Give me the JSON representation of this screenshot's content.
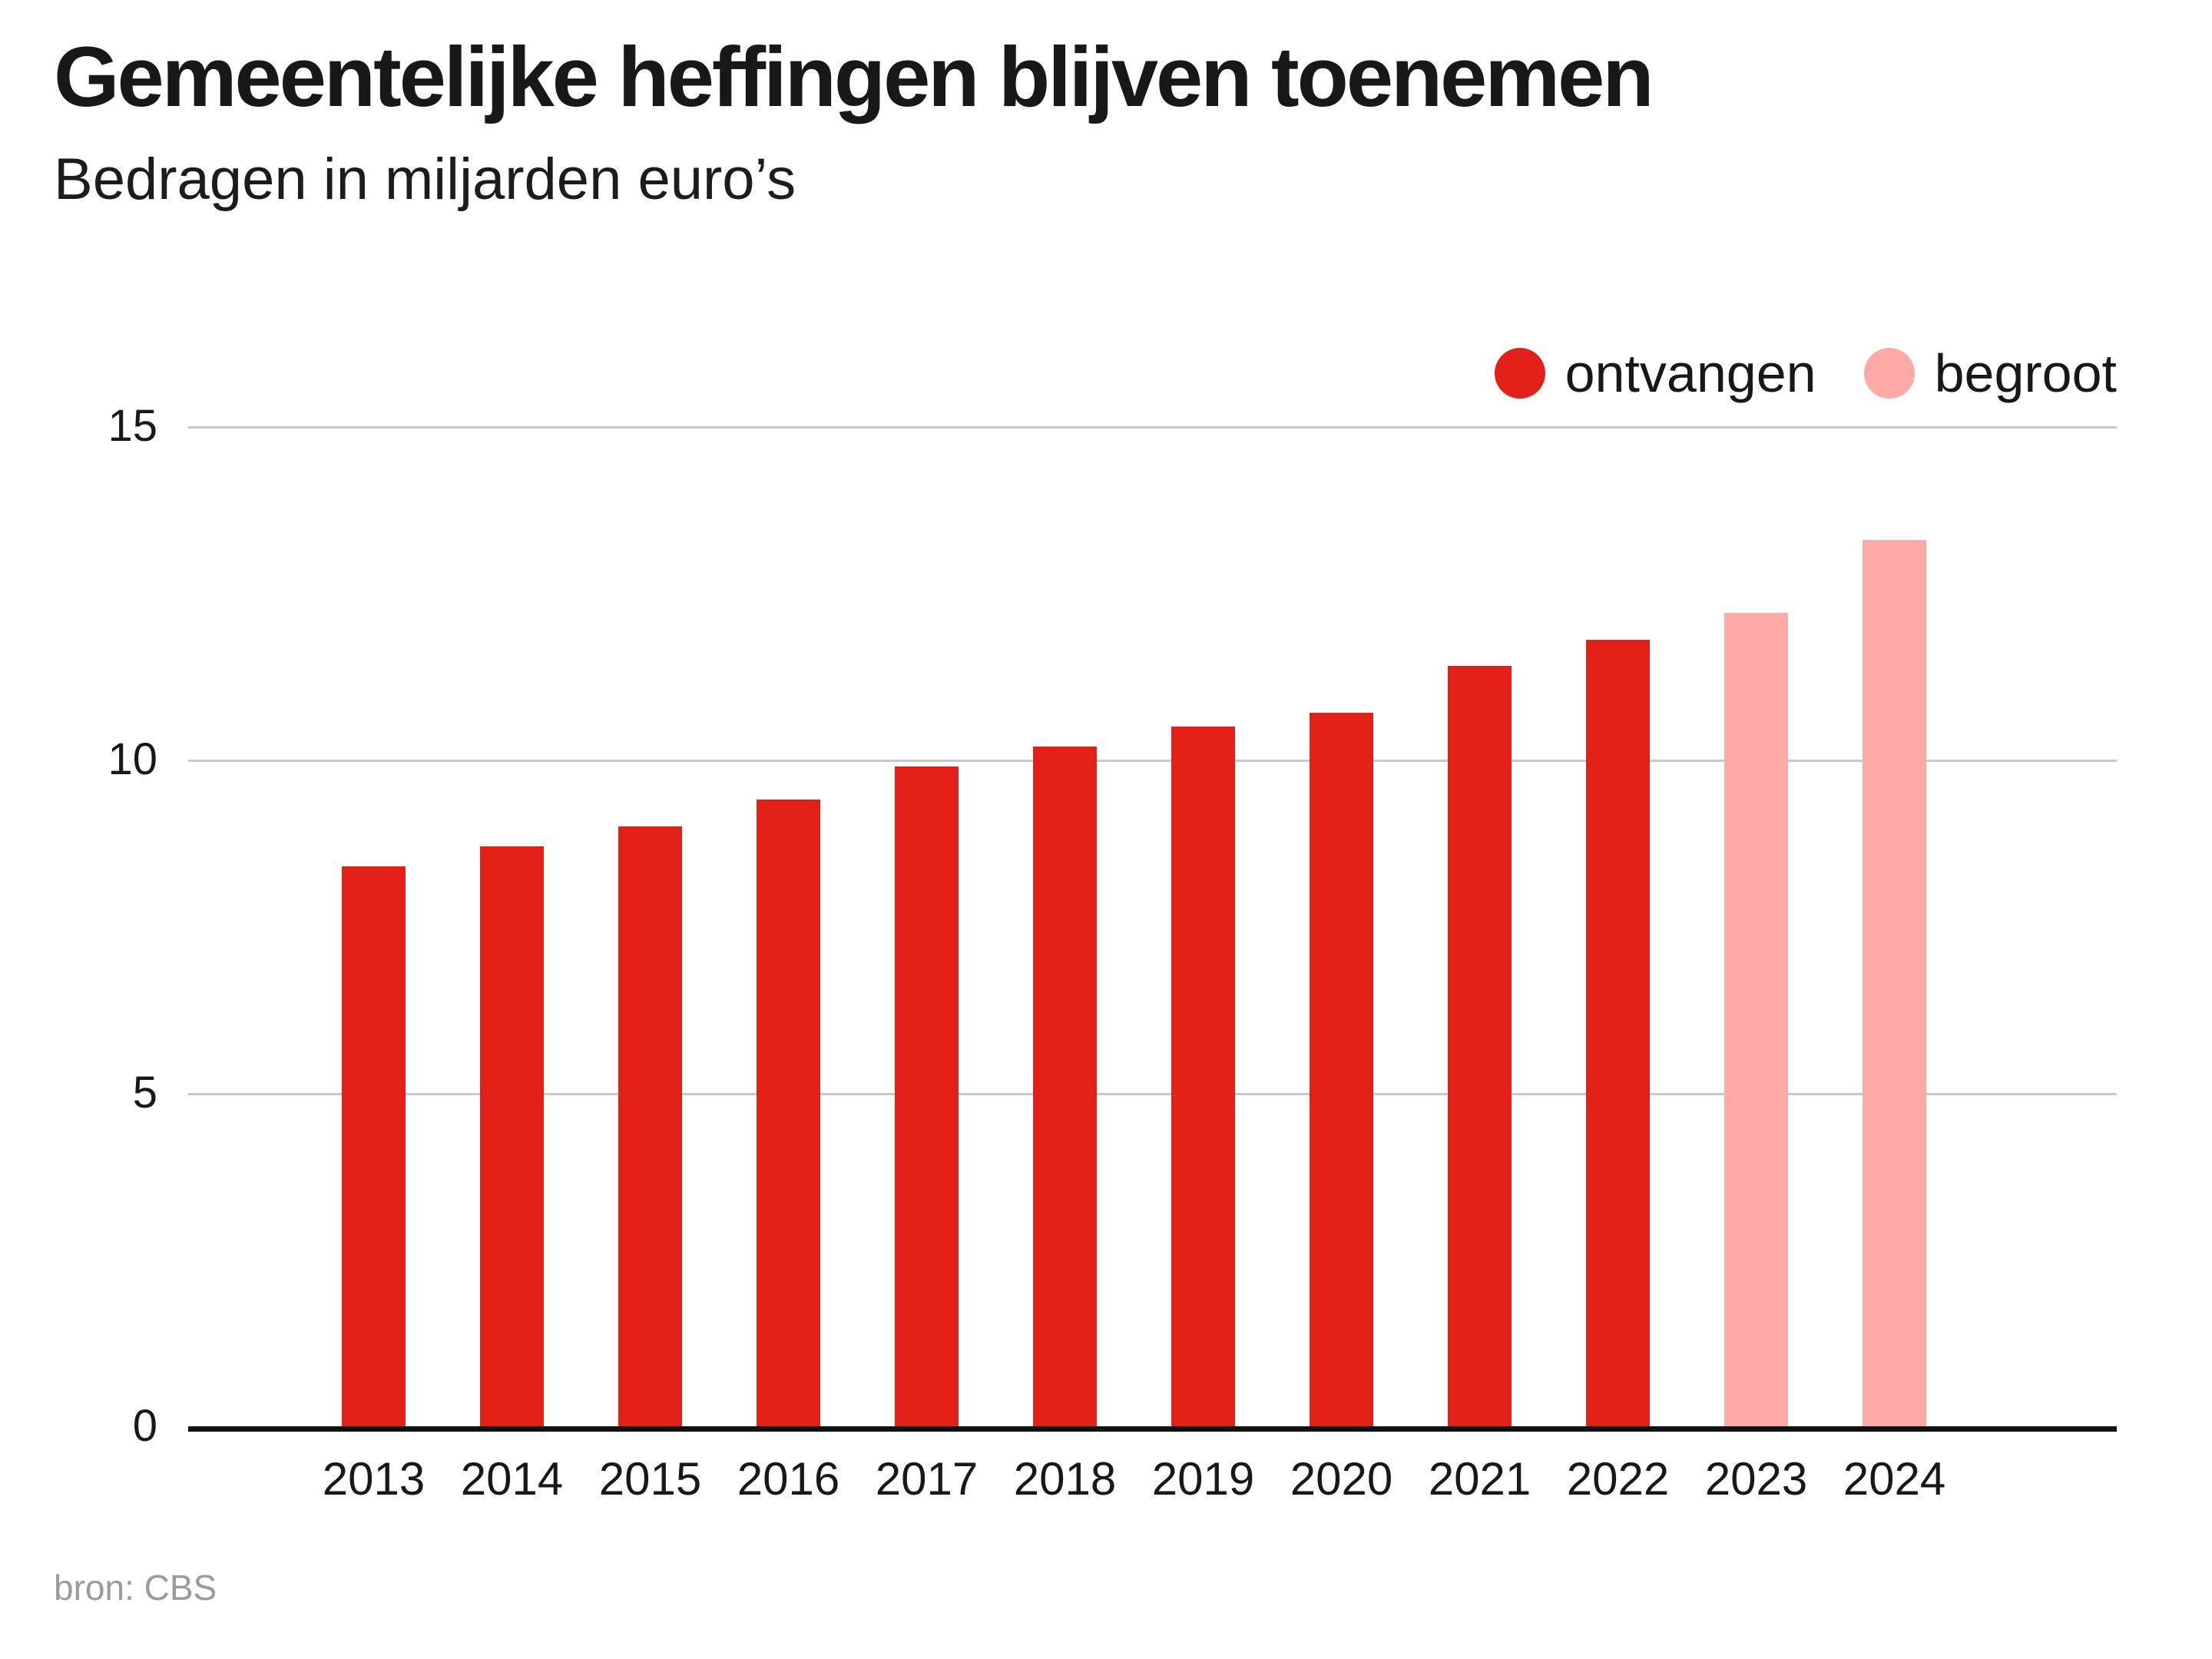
{
  "header": {
    "title": "Gemeentelijke heffingen blijven toenemen",
    "subtitle": "Bedragen in miljarden euro’s"
  },
  "legend": [
    {
      "label": "ontvangen",
      "color": "#e32017"
    },
    {
      "label": "begroot",
      "color": "#fda9a6"
    }
  ],
  "footer": {
    "source": "bron: CBS"
  },
  "colors": {
    "received": "#e32017",
    "budgeted": "#fda9a6",
    "gridline": "#c9c9c9",
    "axis": "#111111",
    "text": "#181818",
    "source_text": "#9b9b9b"
  },
  "chart_data": {
    "type": "bar",
    "title": "Gemeentelijke heffingen blijven toenemen",
    "subtitle": "Bedragen in miljarden euro’s",
    "xlabel": "",
    "ylabel": "",
    "categories": [
      "2013",
      "2014",
      "2015",
      "2016",
      "2017",
      "2018",
      "2019",
      "2020",
      "2021",
      "2022",
      "2023",
      "2024"
    ],
    "series": [
      {
        "name": "ontvangen",
        "color": "#e32017",
        "values": [
          8.4,
          8.7,
          9.0,
          9.4,
          9.9,
          10.2,
          10.5,
          10.7,
          11.4,
          11.8,
          null,
          null
        ]
      },
      {
        "name": "begroot",
        "color": "#fda9a6",
        "values": [
          null,
          null,
          null,
          null,
          null,
          null,
          null,
          null,
          null,
          null,
          12.2,
          13.3
        ]
      }
    ],
    "ylim": [
      0,
      15
    ],
    "yticks": [
      0,
      5,
      10,
      15
    ],
    "grid": true,
    "legend_position": "top-right",
    "source": "bron: CBS"
  }
}
